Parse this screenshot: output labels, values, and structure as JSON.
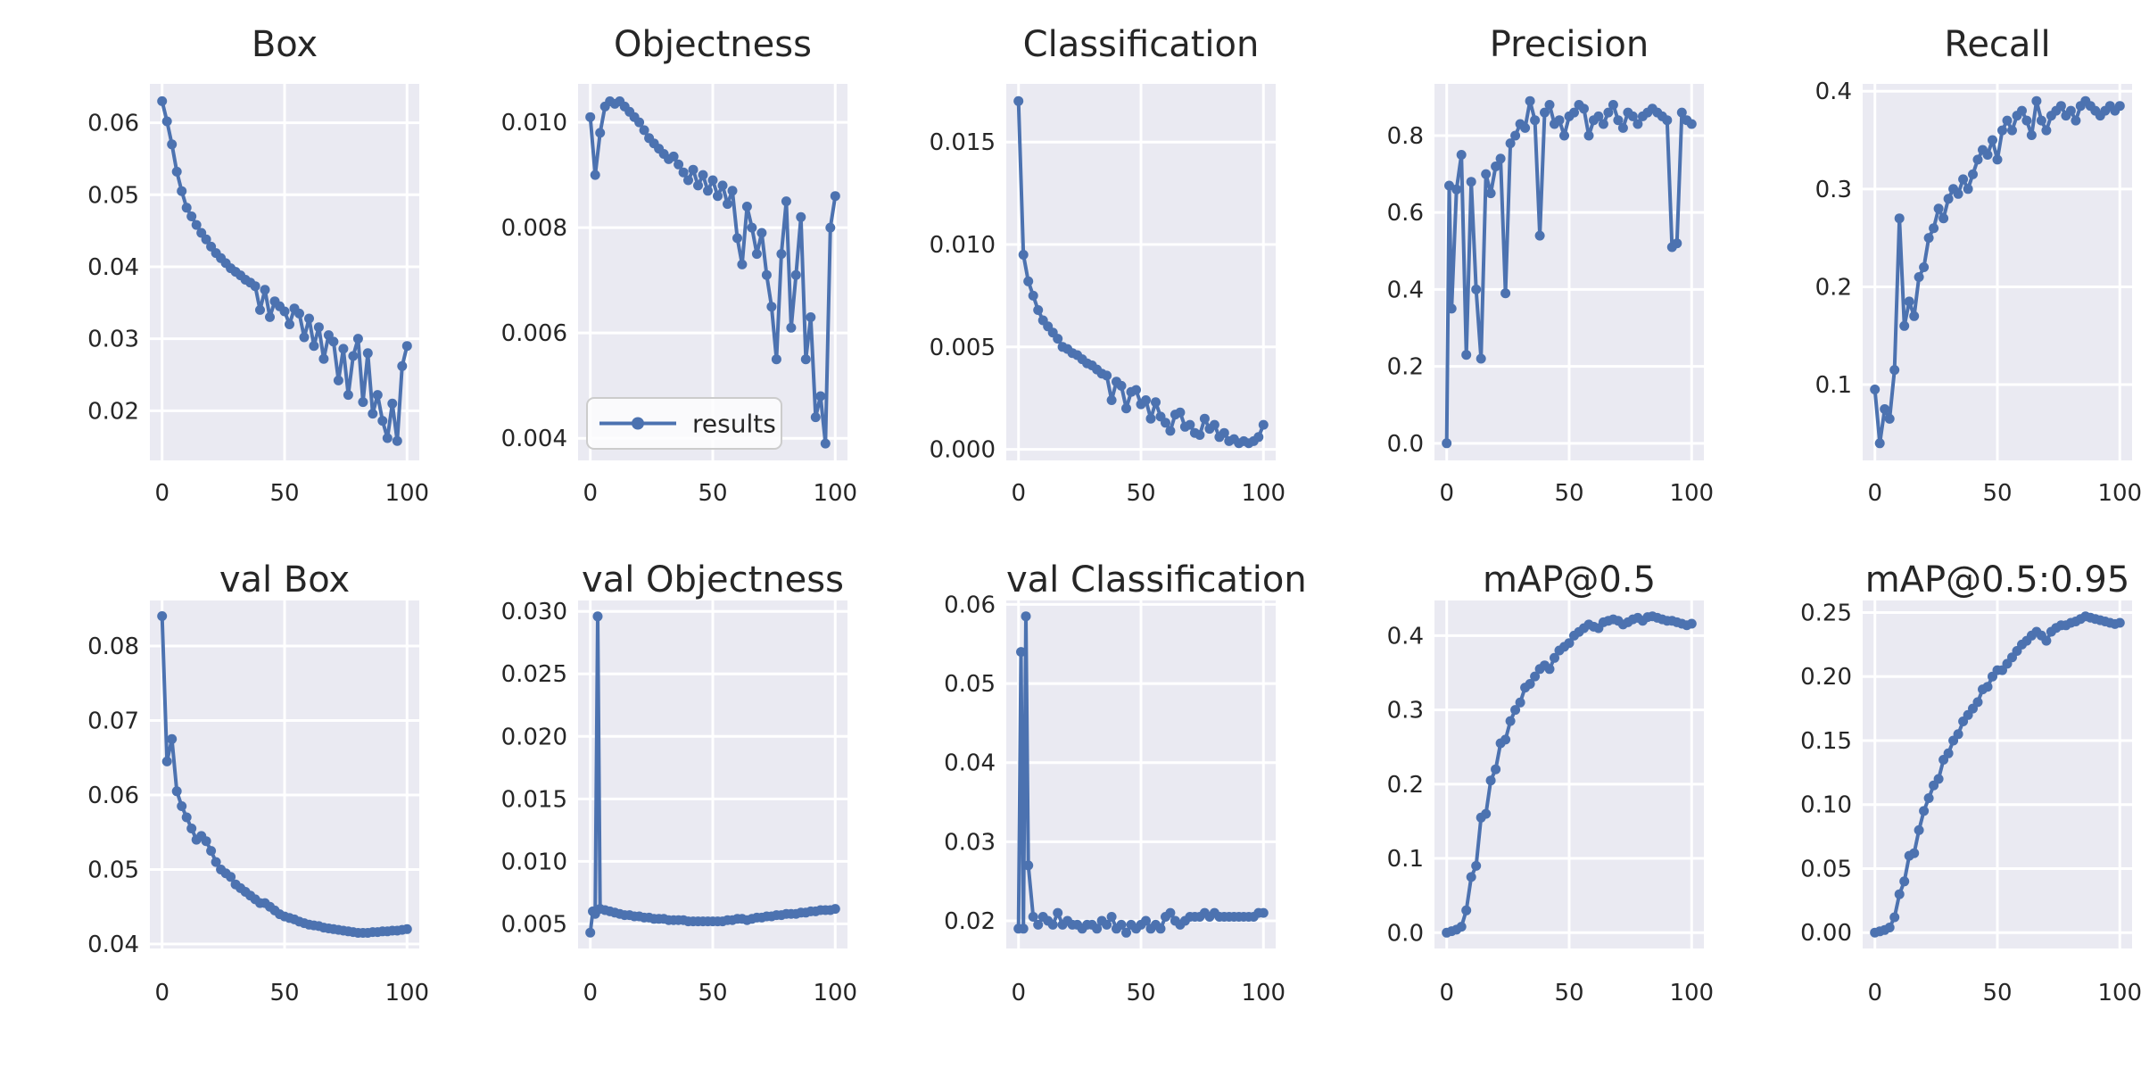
{
  "figure": {
    "background": "#ffffff",
    "panel_bg": "#eaeaf2",
    "grid_color": "#ffffff",
    "line_color": "#4c72b0",
    "text_color": "#262626"
  },
  "legend": {
    "label": "results",
    "chart_index": 1,
    "position": "lower-left"
  },
  "chart_data": [
    {
      "type": "line",
      "title": "Box",
      "xlabel": "",
      "ylabel": "",
      "xlim": [
        -5,
        105
      ],
      "ylim": [
        0.0131,
        0.0654
      ],
      "xticks": {
        "vals": [
          0,
          50,
          100
        ],
        "labels": [
          "0",
          "50",
          "100"
        ]
      },
      "yticks": {
        "vals": [
          0.02,
          0.03,
          0.04,
          0.05,
          0.06
        ],
        "labels": [
          "0.02",
          "0.03",
          "0.04",
          "0.05",
          "0.06"
        ]
      },
      "y": [
        0.063,
        0.0602,
        0.057,
        0.0532,
        0.0505,
        0.0482,
        0.047,
        0.0458,
        0.0447,
        0.0438,
        0.0428,
        0.0419,
        0.0412,
        0.0405,
        0.0398,
        0.0393,
        0.0388,
        0.0382,
        0.0378,
        0.0373,
        0.034,
        0.0368,
        0.033,
        0.0352,
        0.0345,
        0.0338,
        0.032,
        0.0342,
        0.0335,
        0.0302,
        0.0328,
        0.029,
        0.0316,
        0.0272,
        0.0305,
        0.0296,
        0.0242,
        0.0286,
        0.0222,
        0.0276,
        0.03,
        0.0212,
        0.028,
        0.0196,
        0.0222,
        0.0186,
        0.0162,
        0.021,
        0.0158,
        0.0262,
        0.029
      ]
    },
    {
      "type": "line",
      "title": "Objectness",
      "xlabel": "",
      "ylabel": "",
      "xlim": [
        -5,
        105
      ],
      "ylim": [
        0.00358,
        0.01073
      ],
      "xticks": {
        "vals": [
          0,
          50,
          100
        ],
        "labels": [
          "0",
          "50",
          "100"
        ]
      },
      "yticks": {
        "vals": [
          0.004,
          0.006,
          0.008,
          0.01
        ],
        "labels": [
          "0.004",
          "0.006",
          "0.008",
          "0.010"
        ]
      },
      "legend": true,
      "y": [
        0.0101,
        0.009,
        0.0098,
        0.0103,
        0.0104,
        0.01035,
        0.0104,
        0.0103,
        0.0102,
        0.0101,
        0.01,
        0.00985,
        0.0097,
        0.0096,
        0.0095,
        0.0094,
        0.0093,
        0.00935,
        0.0092,
        0.00905,
        0.0089,
        0.0091,
        0.0088,
        0.009,
        0.0087,
        0.0089,
        0.0086,
        0.0088,
        0.00845,
        0.0087,
        0.0078,
        0.0073,
        0.0084,
        0.008,
        0.0075,
        0.0079,
        0.0071,
        0.0065,
        0.0055,
        0.0075,
        0.0085,
        0.0061,
        0.0071,
        0.0082,
        0.0055,
        0.0063,
        0.0044,
        0.0048,
        0.0039,
        0.008,
        0.0086
      ]
    },
    {
      "type": "line",
      "title": "Classification",
      "xlabel": "",
      "ylabel": "",
      "xlim": [
        -5,
        105
      ],
      "ylim": [
        -0.00054,
        0.01784
      ],
      "xticks": {
        "vals": [
          0,
          50,
          100
        ],
        "labels": [
          "0",
          "50",
          "100"
        ]
      },
      "yticks": {
        "vals": [
          0.0,
          0.005,
          0.01,
          0.015
        ],
        "labels": [
          "0.000",
          "0.005",
          "0.010",
          "0.015"
        ]
      },
      "y": [
        0.017,
        0.0095,
        0.0082,
        0.0075,
        0.0068,
        0.0063,
        0.006,
        0.0057,
        0.0054,
        0.005,
        0.0049,
        0.0047,
        0.0046,
        0.0044,
        0.0042,
        0.0041,
        0.0039,
        0.0037,
        0.0036,
        0.0024,
        0.0033,
        0.0031,
        0.002,
        0.0028,
        0.0029,
        0.0022,
        0.0024,
        0.0015,
        0.0023,
        0.0016,
        0.0013,
        0.0009,
        0.0017,
        0.0018,
        0.0011,
        0.0012,
        0.0008,
        0.0007,
        0.0015,
        0.001,
        0.0012,
        0.0006,
        0.0008,
        0.0004,
        0.0005,
        0.0003,
        0.0004,
        0.0003,
        0.0004,
        0.0006,
        0.0012
      ]
    },
    {
      "type": "line",
      "title": "Precision",
      "xlabel": "",
      "ylabel": "",
      "xlim": [
        -5,
        105
      ],
      "ylim": [
        -0.0445,
        0.9345
      ],
      "xticks": {
        "vals": [
          0,
          50,
          100
        ],
        "labels": [
          "0",
          "50",
          "100"
        ]
      },
      "yticks": {
        "vals": [
          0.0,
          0.2,
          0.4,
          0.6,
          0.8
        ],
        "labels": [
          "0.0",
          "0.2",
          "0.4",
          "0.6",
          "0.8"
        ]
      },
      "x": [
        0,
        1,
        2,
        4,
        6,
        8,
        10,
        12,
        14,
        16,
        18,
        20,
        22,
        24,
        26,
        28,
        30,
        32,
        34,
        36,
        38,
        40,
        42,
        44,
        46,
        48,
        50,
        52,
        54,
        56,
        58,
        60,
        62,
        64,
        66,
        68,
        70,
        72,
        74,
        76,
        78,
        80,
        82,
        84,
        86,
        88,
        90,
        92,
        94,
        96,
        98,
        100
      ],
      "y": [
        0.0,
        0.67,
        0.35,
        0.66,
        0.75,
        0.23,
        0.68,
        0.4,
        0.22,
        0.7,
        0.65,
        0.72,
        0.74,
        0.39,
        0.78,
        0.8,
        0.83,
        0.82,
        0.89,
        0.84,
        0.54,
        0.86,
        0.88,
        0.83,
        0.84,
        0.8,
        0.85,
        0.86,
        0.88,
        0.87,
        0.8,
        0.84,
        0.85,
        0.83,
        0.86,
        0.88,
        0.84,
        0.82,
        0.86,
        0.85,
        0.83,
        0.85,
        0.86,
        0.87,
        0.86,
        0.85,
        0.84,
        0.51,
        0.52,
        0.86,
        0.84,
        0.83
      ]
    },
    {
      "type": "line",
      "title": "Recall",
      "xlabel": "",
      "ylabel": "",
      "xlim": [
        -5,
        105
      ],
      "ylim": [
        0.0225,
        0.4075
      ],
      "xticks": {
        "vals": [
          0,
          50,
          100
        ],
        "labels": [
          "0",
          "50",
          "100"
        ]
      },
      "yticks": {
        "vals": [
          0.1,
          0.2,
          0.3,
          0.4
        ],
        "labels": [
          "0.1",
          "0.2",
          "0.3",
          "0.4"
        ]
      },
      "y": [
        0.095,
        0.04,
        0.075,
        0.065,
        0.115,
        0.27,
        0.16,
        0.185,
        0.17,
        0.21,
        0.22,
        0.25,
        0.26,
        0.28,
        0.27,
        0.29,
        0.3,
        0.295,
        0.31,
        0.3,
        0.315,
        0.33,
        0.34,
        0.335,
        0.35,
        0.33,
        0.36,
        0.37,
        0.36,
        0.375,
        0.38,
        0.37,
        0.355,
        0.39,
        0.37,
        0.36,
        0.375,
        0.38,
        0.385,
        0.375,
        0.38,
        0.37,
        0.385,
        0.39,
        0.385,
        0.38,
        0.375,
        0.38,
        0.385,
        0.38,
        0.385
      ]
    },
    {
      "type": "line",
      "title": "val Box",
      "xlabel": "",
      "ylabel": "",
      "xlim": [
        -5,
        105
      ],
      "ylim": [
        0.0394,
        0.0861
      ],
      "xticks": {
        "vals": [
          0,
          50,
          100
        ],
        "labels": [
          "0",
          "50",
          "100"
        ]
      },
      "yticks": {
        "vals": [
          0.04,
          0.05,
          0.06,
          0.07,
          0.08
        ],
        "labels": [
          "0.04",
          "0.05",
          "0.06",
          "0.07",
          "0.08"
        ]
      },
      "y": [
        0.084,
        0.0645,
        0.0675,
        0.0605,
        0.0585,
        0.057,
        0.0555,
        0.054,
        0.0545,
        0.0538,
        0.0525,
        0.051,
        0.05,
        0.0495,
        0.049,
        0.048,
        0.0475,
        0.047,
        0.0465,
        0.046,
        0.0455,
        0.0455,
        0.045,
        0.0445,
        0.044,
        0.0437,
        0.0435,
        0.0433,
        0.043,
        0.0428,
        0.0426,
        0.0425,
        0.0424,
        0.0422,
        0.0421,
        0.042,
        0.0419,
        0.0418,
        0.0417,
        0.0416,
        0.0415,
        0.0415,
        0.0415,
        0.0416,
        0.0416,
        0.0417,
        0.0417,
        0.0418,
        0.0418,
        0.0419,
        0.042
      ]
    },
    {
      "type": "line",
      "title": "val Objectness",
      "xlabel": "",
      "ylabel": "",
      "xlim": [
        -5,
        105
      ],
      "ylim": [
        0.00303,
        0.03087
      ],
      "xticks": {
        "vals": [
          0,
          50,
          100
        ],
        "labels": [
          "0",
          "50",
          "100"
        ]
      },
      "yticks": {
        "vals": [
          0.005,
          0.01,
          0.015,
          0.02,
          0.025,
          0.03
        ],
        "labels": [
          "0.005",
          "0.010",
          "0.015",
          "0.020",
          "0.025",
          "0.030"
        ]
      },
      "x": [
        0,
        1,
        2,
        3,
        4,
        6,
        8,
        10,
        12,
        14,
        16,
        18,
        20,
        22,
        24,
        26,
        28,
        30,
        32,
        34,
        36,
        38,
        40,
        42,
        44,
        46,
        48,
        50,
        52,
        54,
        56,
        58,
        60,
        62,
        64,
        66,
        68,
        70,
        72,
        74,
        76,
        78,
        80,
        82,
        84,
        86,
        88,
        90,
        92,
        94,
        96,
        98,
        100
      ],
      "y": [
        0.0043,
        0.006,
        0.0058,
        0.0296,
        0.0062,
        0.0061,
        0.006,
        0.0059,
        0.0058,
        0.0057,
        0.0057,
        0.0056,
        0.0056,
        0.0055,
        0.0055,
        0.0054,
        0.0054,
        0.0054,
        0.0053,
        0.0053,
        0.0053,
        0.0053,
        0.0052,
        0.0052,
        0.0052,
        0.0052,
        0.0052,
        0.0052,
        0.0052,
        0.0052,
        0.0053,
        0.0053,
        0.0054,
        0.0054,
        0.0053,
        0.0054,
        0.0055,
        0.0055,
        0.0056,
        0.0056,
        0.0057,
        0.0057,
        0.0058,
        0.0058,
        0.0058,
        0.0059,
        0.0059,
        0.006,
        0.006,
        0.0061,
        0.0061,
        0.0061,
        0.0062
      ]
    },
    {
      "type": "line",
      "title": "val Classification",
      "xlabel": "",
      "ylabel": "",
      "xlim": [
        -5,
        105
      ],
      "ylim": [
        0.0165,
        0.0605
      ],
      "xticks": {
        "vals": [
          0,
          50,
          100
        ],
        "labels": [
          "0",
          "50",
          "100"
        ]
      },
      "yticks": {
        "vals": [
          0.02,
          0.03,
          0.04,
          0.05,
          0.06
        ],
        "labels": [
          "0.02",
          "0.03",
          "0.04",
          "0.05",
          "0.06"
        ]
      },
      "x": [
        0,
        1,
        2,
        3,
        4,
        6,
        8,
        10,
        12,
        14,
        16,
        18,
        20,
        22,
        24,
        26,
        28,
        30,
        32,
        34,
        36,
        38,
        40,
        42,
        44,
        46,
        48,
        50,
        52,
        54,
        56,
        58,
        60,
        62,
        64,
        66,
        68,
        70,
        72,
        74,
        76,
        78,
        80,
        82,
        84,
        86,
        88,
        90,
        92,
        94,
        96,
        98,
        100
      ],
      "y": [
        0.019,
        0.054,
        0.019,
        0.0585,
        0.027,
        0.0205,
        0.0195,
        0.0205,
        0.02,
        0.0195,
        0.021,
        0.0195,
        0.02,
        0.0195,
        0.0195,
        0.019,
        0.0195,
        0.0195,
        0.019,
        0.02,
        0.0195,
        0.0205,
        0.019,
        0.0195,
        0.0185,
        0.0195,
        0.019,
        0.0195,
        0.02,
        0.019,
        0.0195,
        0.019,
        0.0205,
        0.021,
        0.02,
        0.0195,
        0.02,
        0.0205,
        0.0205,
        0.0205,
        0.021,
        0.0205,
        0.021,
        0.0205,
        0.0205,
        0.0205,
        0.0205,
        0.0205,
        0.0205,
        0.0205,
        0.0205,
        0.021,
        0.021
      ]
    },
    {
      "type": "line",
      "title": "mAP@0.5",
      "xlabel": "",
      "ylabel": "",
      "xlim": [
        -5,
        105
      ],
      "ylim": [
        -0.0213,
        0.4473
      ],
      "xticks": {
        "vals": [
          0,
          50,
          100
        ],
        "labels": [
          "0",
          "50",
          "100"
        ]
      },
      "yticks": {
        "vals": [
          0.0,
          0.1,
          0.2,
          0.3,
          0.4
        ],
        "labels": [
          "0.0",
          "0.1",
          "0.2",
          "0.3",
          "0.4"
        ]
      },
      "y": [
        0.0,
        0.002,
        0.004,
        0.008,
        0.03,
        0.075,
        0.09,
        0.155,
        0.16,
        0.205,
        0.22,
        0.255,
        0.26,
        0.285,
        0.3,
        0.31,
        0.33,
        0.335,
        0.345,
        0.355,
        0.36,
        0.355,
        0.37,
        0.38,
        0.385,
        0.39,
        0.4,
        0.405,
        0.41,
        0.415,
        0.412,
        0.41,
        0.418,
        0.42,
        0.422,
        0.42,
        0.415,
        0.418,
        0.422,
        0.424,
        0.42,
        0.425,
        0.426,
        0.424,
        0.422,
        0.42,
        0.42,
        0.418,
        0.416,
        0.414,
        0.416
      ]
    },
    {
      "type": "line",
      "title": "mAP@0.5:0.95",
      "xlabel": "",
      "ylabel": "",
      "xlim": [
        -5,
        105
      ],
      "ylim": [
        -0.0124,
        0.2594
      ],
      "xticks": {
        "vals": [
          0,
          50,
          100
        ],
        "labels": [
          "0",
          "50",
          "100"
        ]
      },
      "yticks": {
        "vals": [
          0.0,
          0.05,
          0.1,
          0.15,
          0.2,
          0.25
        ],
        "labels": [
          "0.00",
          "0.05",
          "0.10",
          "0.15",
          "0.20",
          "0.25"
        ]
      },
      "y": [
        0.0,
        0.001,
        0.002,
        0.004,
        0.012,
        0.03,
        0.04,
        0.06,
        0.062,
        0.08,
        0.095,
        0.105,
        0.115,
        0.12,
        0.135,
        0.14,
        0.15,
        0.155,
        0.165,
        0.17,
        0.175,
        0.18,
        0.19,
        0.192,
        0.2,
        0.205,
        0.205,
        0.21,
        0.215,
        0.22,
        0.225,
        0.228,
        0.232,
        0.235,
        0.232,
        0.228,
        0.235,
        0.238,
        0.24,
        0.24,
        0.242,
        0.243,
        0.245,
        0.247,
        0.246,
        0.245,
        0.244,
        0.243,
        0.242,
        0.241,
        0.242
      ]
    }
  ],
  "x_shared": [
    0,
    2,
    4,
    6,
    8,
    10,
    12,
    14,
    16,
    18,
    20,
    22,
    24,
    26,
    28,
    30,
    32,
    34,
    36,
    38,
    40,
    42,
    44,
    46,
    48,
    50,
    52,
    54,
    56,
    58,
    60,
    62,
    64,
    66,
    68,
    70,
    72,
    74,
    76,
    78,
    80,
    82,
    84,
    86,
    88,
    90,
    92,
    94,
    96,
    98,
    100
  ]
}
